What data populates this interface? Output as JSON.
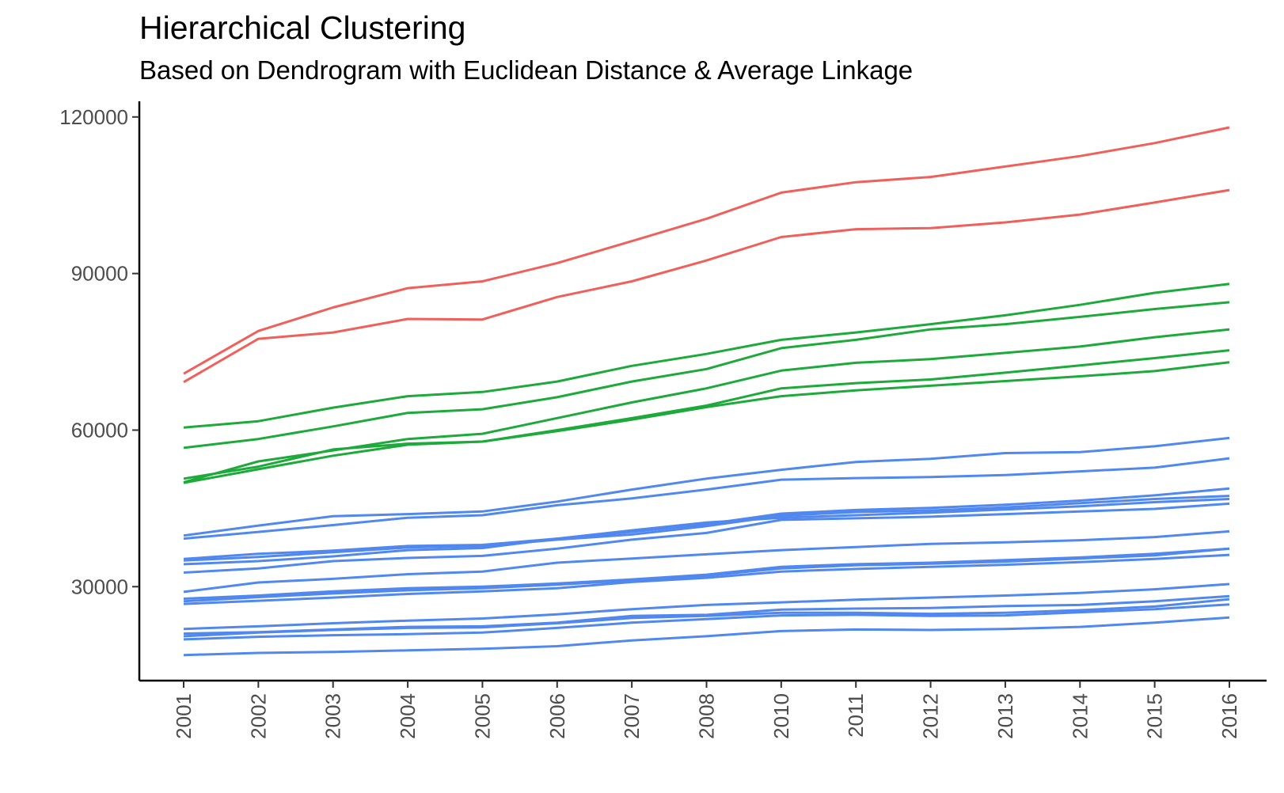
{
  "chart_data": {
    "type": "line",
    "title": "Hierarchical Clustering",
    "subtitle": "Based on Dendrogram with Euclidean Distance & Average Linkage",
    "xlabel": "",
    "ylabel": "",
    "categories": [
      "2001",
      "2002",
      "2003",
      "2004",
      "2005",
      "2006",
      "2007",
      "2008",
      "2010",
      "2011",
      "2012",
      "2013",
      "2014",
      "2015",
      "2016"
    ],
    "yticks": [
      30000,
      60000,
      90000,
      120000
    ],
    "ytick_labels": [
      "30000",
      "60000",
      "90000",
      "120000"
    ],
    "ylim": [
      12000,
      123000
    ],
    "grid": false,
    "legend": "none",
    "cluster_colors": {
      "1": "#F0605B",
      "2": "#1DAA3A",
      "3": "#5088F0"
    },
    "series": [
      {
        "cluster": 1,
        "values": [
          70800,
          79000,
          83500,
          87200,
          88500,
          92000,
          96200,
          100500,
          105500,
          107500,
          108500,
          110500,
          112500,
          115000,
          118000
        ]
      },
      {
        "cluster": 1,
        "values": [
          69200,
          77500,
          78700,
          81300,
          81200,
          85500,
          88500,
          92500,
          97000,
          98500,
          98700,
          99800,
          101300,
          103600,
          106000
        ]
      },
      {
        "cluster": 2,
        "values": [
          60500,
          61700,
          64300,
          66500,
          67300,
          69300,
          72300,
          74600,
          77300,
          78700,
          80300,
          82000,
          84000,
          86300,
          88000
        ]
      },
      {
        "cluster": 2,
        "values": [
          56600,
          58300,
          60700,
          63300,
          64000,
          66300,
          69300,
          71700,
          75700,
          77300,
          79300,
          80300,
          81700,
          83200,
          84500
        ]
      },
      {
        "cluster": 2,
        "values": [
          50700,
          53000,
          56300,
          57400,
          57800,
          60000,
          62300,
          64700,
          68000,
          69000,
          69700,
          71000,
          72400,
          73800,
          75300
        ]
      },
      {
        "cluster": 2,
        "values": [
          50000,
          54000,
          56100,
          58300,
          59300,
          62300,
          65300,
          68000,
          71400,
          72900,
          73600,
          74800,
          76000,
          77800,
          79300
        ]
      },
      {
        "cluster": 2,
        "values": [
          49900,
          52500,
          55100,
          57200,
          57800,
          59800,
          62000,
          64400,
          66500,
          67600,
          68500,
          69400,
          70300,
          71300,
          73000
        ]
      },
      {
        "cluster": 3,
        "values": [
          39800,
          41700,
          43500,
          43900,
          44400,
          46300,
          48600,
          50700,
          52400,
          53900,
          54500,
          55600,
          55800,
          56900,
          58500
        ]
      },
      {
        "cluster": 3,
        "values": [
          39200,
          40500,
          41800,
          43200,
          43700,
          45600,
          46900,
          48600,
          50500,
          50800,
          51000,
          51400,
          52100,
          52800,
          54600
        ]
      },
      {
        "cluster": 3,
        "values": [
          35300,
          36300,
          36900,
          37800,
          38000,
          39200,
          40500,
          42000,
          44000,
          44700,
          45100,
          45700,
          46500,
          47500,
          48800
        ]
      },
      {
        "cluster": 3,
        "values": [
          35000,
          35700,
          36600,
          37500,
          37800,
          39000,
          40000,
          41600,
          43600,
          44300,
          44600,
          45200,
          46000,
          46800,
          47400
        ]
      },
      {
        "cluster": 3,
        "values": [
          34300,
          34900,
          35800,
          37000,
          37400,
          39200,
          40800,
          42300,
          43200,
          43700,
          44200,
          44800,
          45400,
          46200,
          46800
        ]
      },
      {
        "cluster": 3,
        "values": [
          32700,
          33500,
          34900,
          35500,
          35900,
          37300,
          39000,
          40300,
          42800,
          43100,
          43400,
          43900,
          44400,
          44900,
          45900
        ]
      },
      {
        "cluster": 3,
        "values": [
          29000,
          30800,
          31500,
          32400,
          32900,
          34600,
          35400,
          36200,
          37000,
          37600,
          38200,
          38500,
          38900,
          39500,
          40600
        ]
      },
      {
        "cluster": 3,
        "values": [
          27700,
          28300,
          29100,
          29700,
          30000,
          30600,
          31400,
          32300,
          33800,
          34300,
          34600,
          35100,
          35600,
          36300,
          37300
        ]
      },
      {
        "cluster": 3,
        "values": [
          27200,
          28000,
          28700,
          29300,
          29700,
          30400,
          31200,
          32100,
          33500,
          34100,
          34400,
          34800,
          35400,
          36000,
          37300
        ]
      },
      {
        "cluster": 3,
        "values": [
          26700,
          27300,
          27900,
          28600,
          29100,
          29700,
          30900,
          31700,
          32900,
          33400,
          33800,
          34200,
          34700,
          35300,
          36100
        ]
      },
      {
        "cluster": 3,
        "values": [
          21900,
          22400,
          23000,
          23500,
          23900,
          24700,
          25700,
          26500,
          27000,
          27500,
          27900,
          28300,
          28800,
          29500,
          30500
        ]
      },
      {
        "cluster": 3,
        "values": [
          21000,
          21300,
          21800,
          22300,
          22400,
          23100,
          24400,
          24600,
          25600,
          25800,
          25900,
          26300,
          26500,
          27200,
          28200
        ]
      },
      {
        "cluster": 3,
        "values": [
          20500,
          21200,
          21700,
          22100,
          22200,
          23000,
          24000,
          24400,
          25000,
          25000,
          24800,
          25000,
          25500,
          26200,
          27600
        ]
      },
      {
        "cluster": 3,
        "values": [
          19900,
          20400,
          20700,
          20900,
          21200,
          22100,
          23100,
          23800,
          24500,
          24600,
          24400,
          24500,
          25100,
          25700,
          26600
        ]
      },
      {
        "cluster": 3,
        "values": [
          16900,
          17300,
          17500,
          17800,
          18100,
          18600,
          19700,
          20500,
          21500,
          21800,
          21700,
          21900,
          22300,
          23100,
          24100
        ]
      }
    ]
  }
}
